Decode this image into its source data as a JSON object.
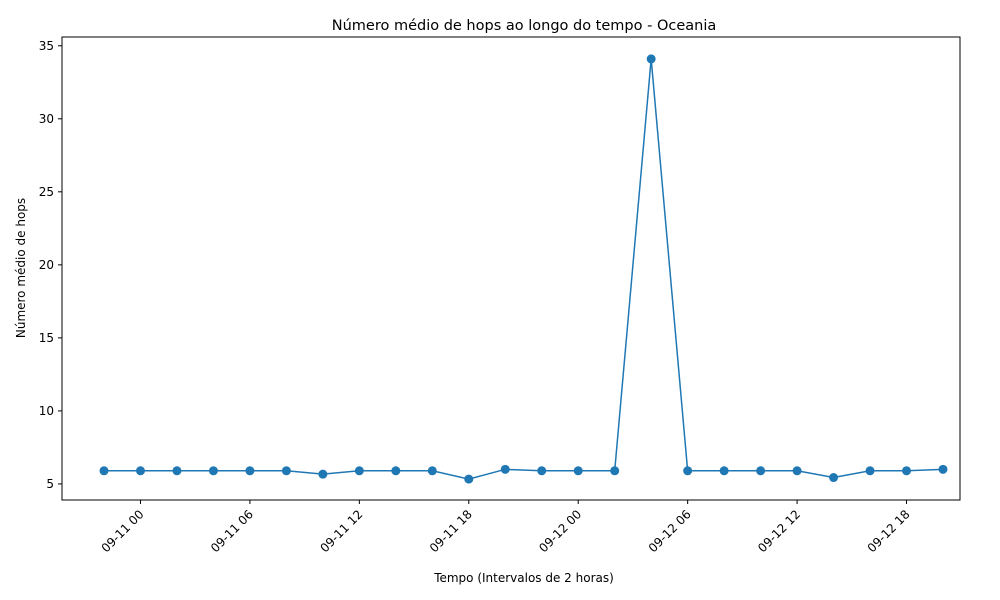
{
  "chart_data": {
    "type": "line",
    "title": "Número médio de hops ao longo do tempo - Oceania",
    "xlabel": "Tempo (Intervalos de 2 horas)",
    "ylabel": "Número médio de hops",
    "x_tick_labels": [
      "09-11 00",
      "09-11 06",
      "09-11 12",
      "09-11 18",
      "09-12 00",
      "09-12 06",
      "09-12 12",
      "09-12 18"
    ],
    "y_ticks": [
      5,
      10,
      15,
      20,
      25,
      30,
      35
    ],
    "ylim": [
      3.9,
      35.6
    ],
    "x": [
      "09-10 22:00",
      "09-11 00:00",
      "09-11 02:00",
      "09-11 04:00",
      "09-11 06:00",
      "09-11 08:00",
      "09-11 10:00",
      "09-11 12:00",
      "09-11 14:00",
      "09-11 16:00",
      "09-11 18:00",
      "09-11 20:00",
      "09-11 22:00",
      "09-12 00:00",
      "09-12 02:00",
      "09-12 04:00",
      "09-12 06:00",
      "09-12 08:00",
      "09-12 10:00",
      "09-12 12:00",
      "09-12 14:00",
      "09-12 16:00",
      "09-12 18:00",
      "09-12 20:00"
    ],
    "values": [
      5.9,
      5.9,
      5.9,
      5.9,
      5.9,
      5.9,
      5.67,
      5.9,
      5.9,
      5.9,
      5.33,
      6.0,
      5.9,
      5.9,
      5.9,
      34.1,
      5.9,
      5.9,
      5.9,
      5.9,
      5.44,
      5.9,
      5.9,
      6.0
    ],
    "grid": false,
    "marker": "circle",
    "color": "#1f77b4"
  }
}
